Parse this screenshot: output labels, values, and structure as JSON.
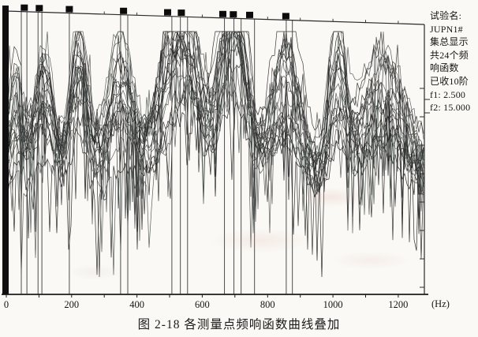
{
  "figure": {
    "caption": "图 2-18  各测量点频响函数曲线叠加"
  },
  "info_panel": {
    "lines": [
      "试验名:",
      "JUPN1#",
      "集总显示",
      "共24个频",
      "响函数",
      "已收10阶",
      "f1:  2.500",
      "f2:  15.000"
    ]
  },
  "axis": {
    "unit_label": "(Hz)",
    "x_tick_labels": [
      "0",
      "200",
      "400",
      "600",
      "800",
      "1000",
      "1200"
    ]
  },
  "chart_data": {
    "type": "line",
    "title": "各测量点频响函数曲线叠加",
    "xlabel": "(Hz)",
    "ylabel": "",
    "xlim": [
      0,
      1280
    ],
    "x_major_ticks": [
      0,
      200,
      400,
      600,
      800,
      1000,
      1200
    ],
    "x_minor_step": 100,
    "grid": false,
    "legend": "none",
    "num_curves": 24,
    "resonance_peaks_hz": [
      30,
      115,
      222,
      350,
      505,
      565,
      675,
      712,
      855,
      1015,
      1150
    ],
    "peak_rel_height": [
      0.7,
      0.95,
      1.0,
      0.97,
      0.97,
      0.8,
      0.95,
      0.85,
      0.95,
      1.0,
      0.8
    ],
    "peak_width_hz": [
      22,
      30,
      26,
      40,
      48,
      35,
      40,
      35,
      45,
      26,
      65
    ],
    "cursor_lines_hz": [
      46,
      63,
      97,
      109,
      193,
      350,
      372,
      507,
      533,
      555,
      668,
      697,
      719,
      760,
      857,
      876
    ],
    "marker_squares_hz": [
      55,
      101,
      193,
      359,
      494,
      536,
      663,
      695,
      745,
      856
    ],
    "curve_colors": [
      "#1c1c1c",
      "#2b2b2b",
      "#4a534e",
      "#555555"
    ],
    "line_color": "#222222",
    "seed": 7
  }
}
